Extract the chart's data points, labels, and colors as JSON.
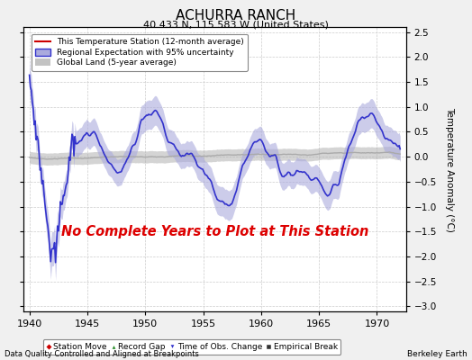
{
  "title": "ACHURRA RANCH",
  "subtitle": "40.433 N, 115.583 W (United States)",
  "ylabel": "Temperature Anomaly (°C)",
  "xlim": [
    1939.5,
    1972.5
  ],
  "ylim": [
    -3.1,
    2.6
  ],
  "yticks": [
    -3,
    -2.5,
    -2,
    -1.5,
    -1,
    -0.5,
    0,
    0.5,
    1,
    1.5,
    2,
    2.5
  ],
  "xticks": [
    1940,
    1945,
    1950,
    1955,
    1960,
    1965,
    1970
  ],
  "bg_color": "#f0f0f0",
  "plot_bg_color": "#ffffff",
  "no_data_text": "No Complete Years to Plot at This Station",
  "no_data_color": "#dd0000",
  "footer_left": "Data Quality Controlled and Aligned at Breakpoints",
  "footer_right": "Berkeley Earth",
  "regional_color": "#3333cc",
  "regional_band_color": "#aaaadd",
  "global_color": "#aaaaaa",
  "legend_labels": [
    "This Temperature Station (12-month average)",
    "Regional Expectation with 95% uncertainty",
    "Global Land (5-year average)"
  ],
  "marker_legend": [
    {
      "label": "Station Move",
      "color": "#cc0000",
      "marker": "D"
    },
    {
      "label": "Record Gap",
      "color": "#228822",
      "marker": "^"
    },
    {
      "label": "Time of Obs. Change",
      "color": "#3333cc",
      "marker": "v"
    },
    {
      "label": "Empirical Break",
      "color": "#333333",
      "marker": "s"
    }
  ],
  "seed": 17
}
